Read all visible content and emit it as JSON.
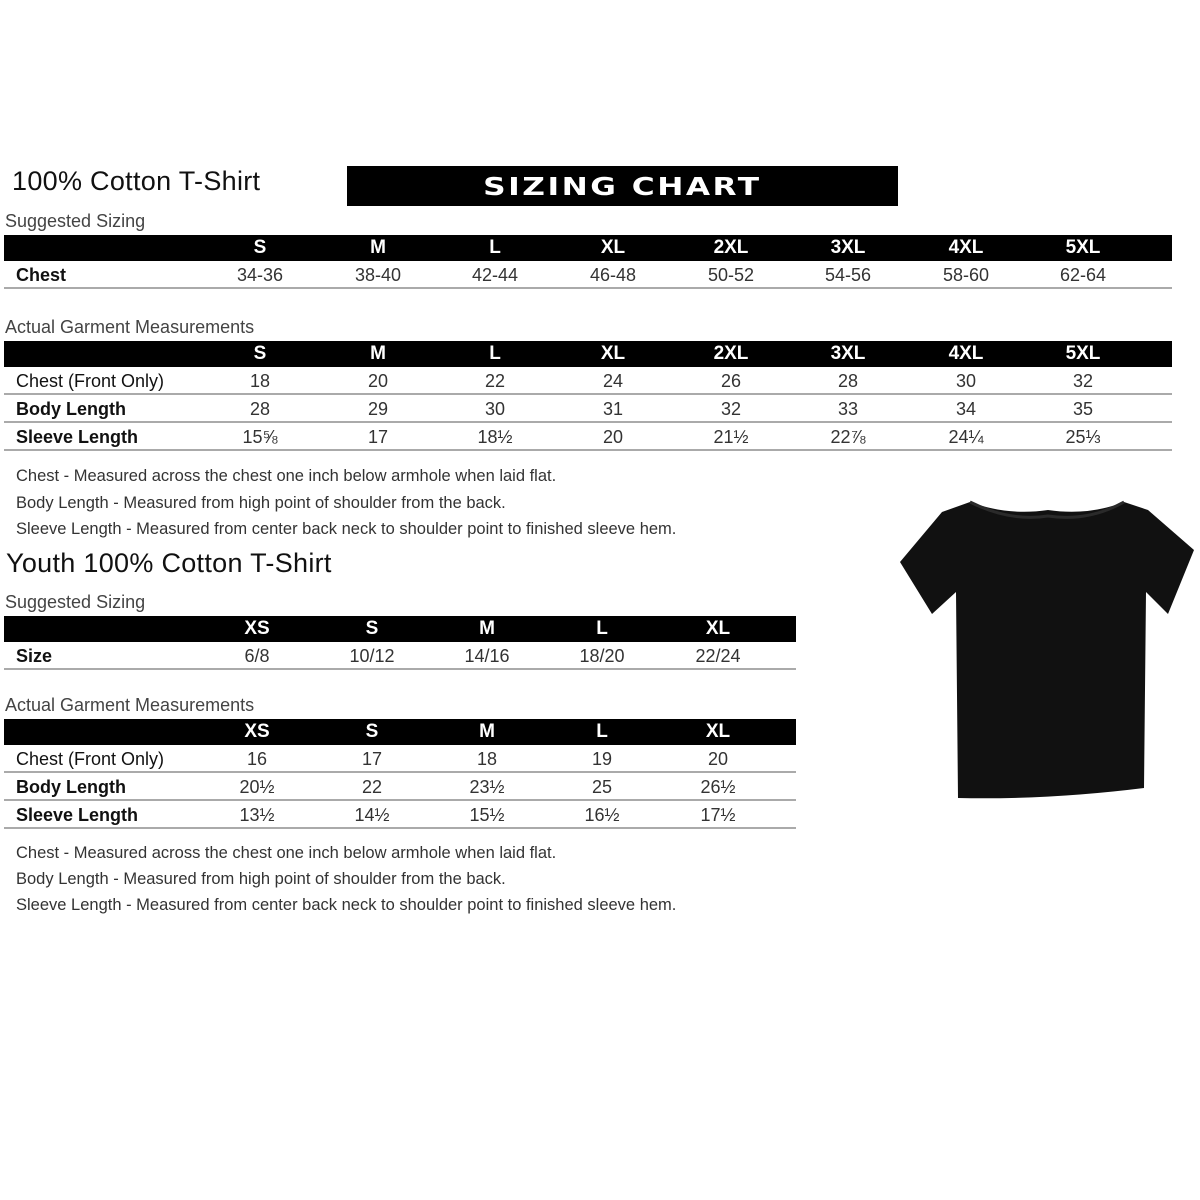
{
  "adult": {
    "title": "100% Cotton T-Shirt",
    "banner": "SIZING CHART",
    "suggested_label": "Suggested Sizing",
    "sizes": [
      "S",
      "M",
      "L",
      "XL",
      "2XL",
      "3XL",
      "4XL",
      "5XL"
    ],
    "suggested_rows": [
      {
        "label": "Chest",
        "values": [
          "34-36",
          "38-40",
          "42-44",
          "46-48",
          "50-52",
          "54-56",
          "58-60",
          "62-64"
        ]
      }
    ],
    "actual_label": "Actual Garment Measurements",
    "actual_rows": [
      {
        "label": "Chest (Front Only)",
        "values": [
          "18",
          "20",
          "22",
          "24",
          "26",
          "28",
          "30",
          "32"
        ]
      },
      {
        "label": "Body Length",
        "values": [
          "28",
          "29",
          "30",
          "31",
          "32",
          "33",
          "34",
          "35"
        ]
      },
      {
        "label": "Sleeve Length",
        "values": [
          "15⅝",
          "17",
          "18½",
          "20",
          "21½",
          "22⅞",
          "24¼",
          "25⅓"
        ]
      }
    ],
    "notes": [
      "Chest - Measured across the chest one inch below armhole when laid flat.",
      "Body Length - Measured from high point of shoulder from the back.",
      "Sleeve Length - Measured from center back neck to shoulder point to finished sleeve hem."
    ]
  },
  "youth": {
    "title": "Youth 100% Cotton T-Shirt",
    "suggested_label": "Suggested Sizing",
    "sizes": [
      "XS",
      "S",
      "M",
      "L",
      "XL"
    ],
    "suggested_rows": [
      {
        "label": "Size",
        "values": [
          "6/8",
          "10/12",
          "14/16",
          "18/20",
          "22/24"
        ]
      }
    ],
    "actual_label": "Actual Garment Measurements",
    "actual_rows": [
      {
        "label": "Chest (Front Only)",
        "values": [
          "16",
          "17",
          "18",
          "19",
          "20"
        ]
      },
      {
        "label": "Body Length",
        "values": [
          "20½",
          "22",
          "23½",
          "25",
          "26½"
        ]
      },
      {
        "label": "Sleeve Length",
        "values": [
          "13½",
          "14½",
          "15½",
          "16½",
          "17½"
        ]
      }
    ],
    "notes": [
      "Chest - Measured across the chest one inch below armhole when laid flat.",
      "Body Length - Measured from high point of shoulder from the back.",
      "Sleeve Length - Measured from center back neck to shoulder point to finished sleeve hem."
    ]
  },
  "shirt_color": "#111111"
}
